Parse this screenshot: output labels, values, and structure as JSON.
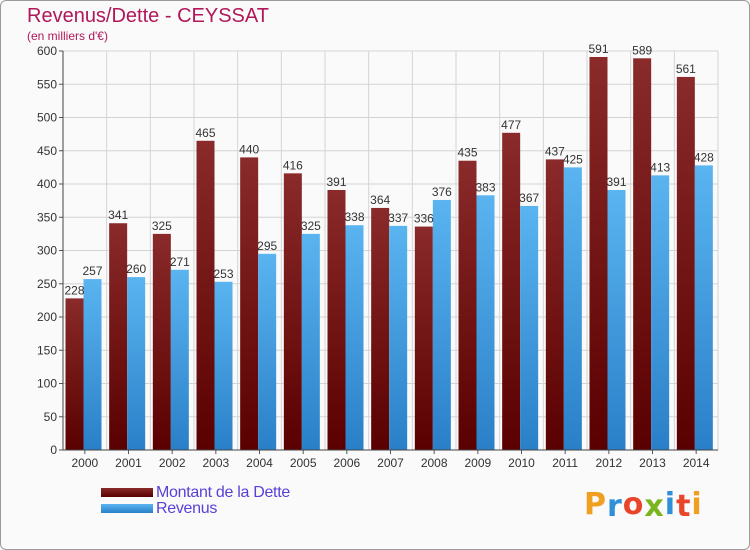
{
  "title": "Revenus/Dette - CEYSSAT",
  "subtitle": "(en milliers d'€)",
  "chart_data": {
    "type": "bar",
    "categories": [
      "2000",
      "2001",
      "2002",
      "2003",
      "2004",
      "2005",
      "2006",
      "2007",
      "2008",
      "2009",
      "2010",
      "2011",
      "2012",
      "2013",
      "2014"
    ],
    "series": [
      {
        "name": "Montant de la Dette",
        "values": [
          228,
          341,
          325,
          465,
          440,
          416,
          391,
          364,
          336,
          435,
          477,
          437,
          591,
          589,
          561
        ],
        "color": "#7a1010"
      },
      {
        "name": "Revenus",
        "values": [
          257,
          260,
          271,
          253,
          295,
          325,
          338,
          337,
          376,
          383,
          367,
          425,
          391,
          413,
          428
        ],
        "color": "#3e9fe6"
      }
    ],
    "ylim": [
      0,
      600
    ],
    "yticks": [
      0,
      50,
      100,
      150,
      200,
      250,
      300,
      350,
      400,
      450,
      500,
      550,
      600
    ],
    "grid": true,
    "legend": "bottom-left"
  },
  "legend": [
    {
      "label": "Montant de la Dette",
      "color": "#7a1010"
    },
    {
      "label": "Revenus",
      "color": "#3e9fe6"
    }
  ],
  "logo": {
    "letters": [
      "P",
      "r",
      "o",
      "x",
      "i",
      "t",
      "i"
    ],
    "colors": [
      "#f0a020",
      "#2f8fd8",
      "#e8452a",
      "#7ab51d",
      "#2f8fd8",
      "#e8452a",
      "#f0a020"
    ]
  }
}
